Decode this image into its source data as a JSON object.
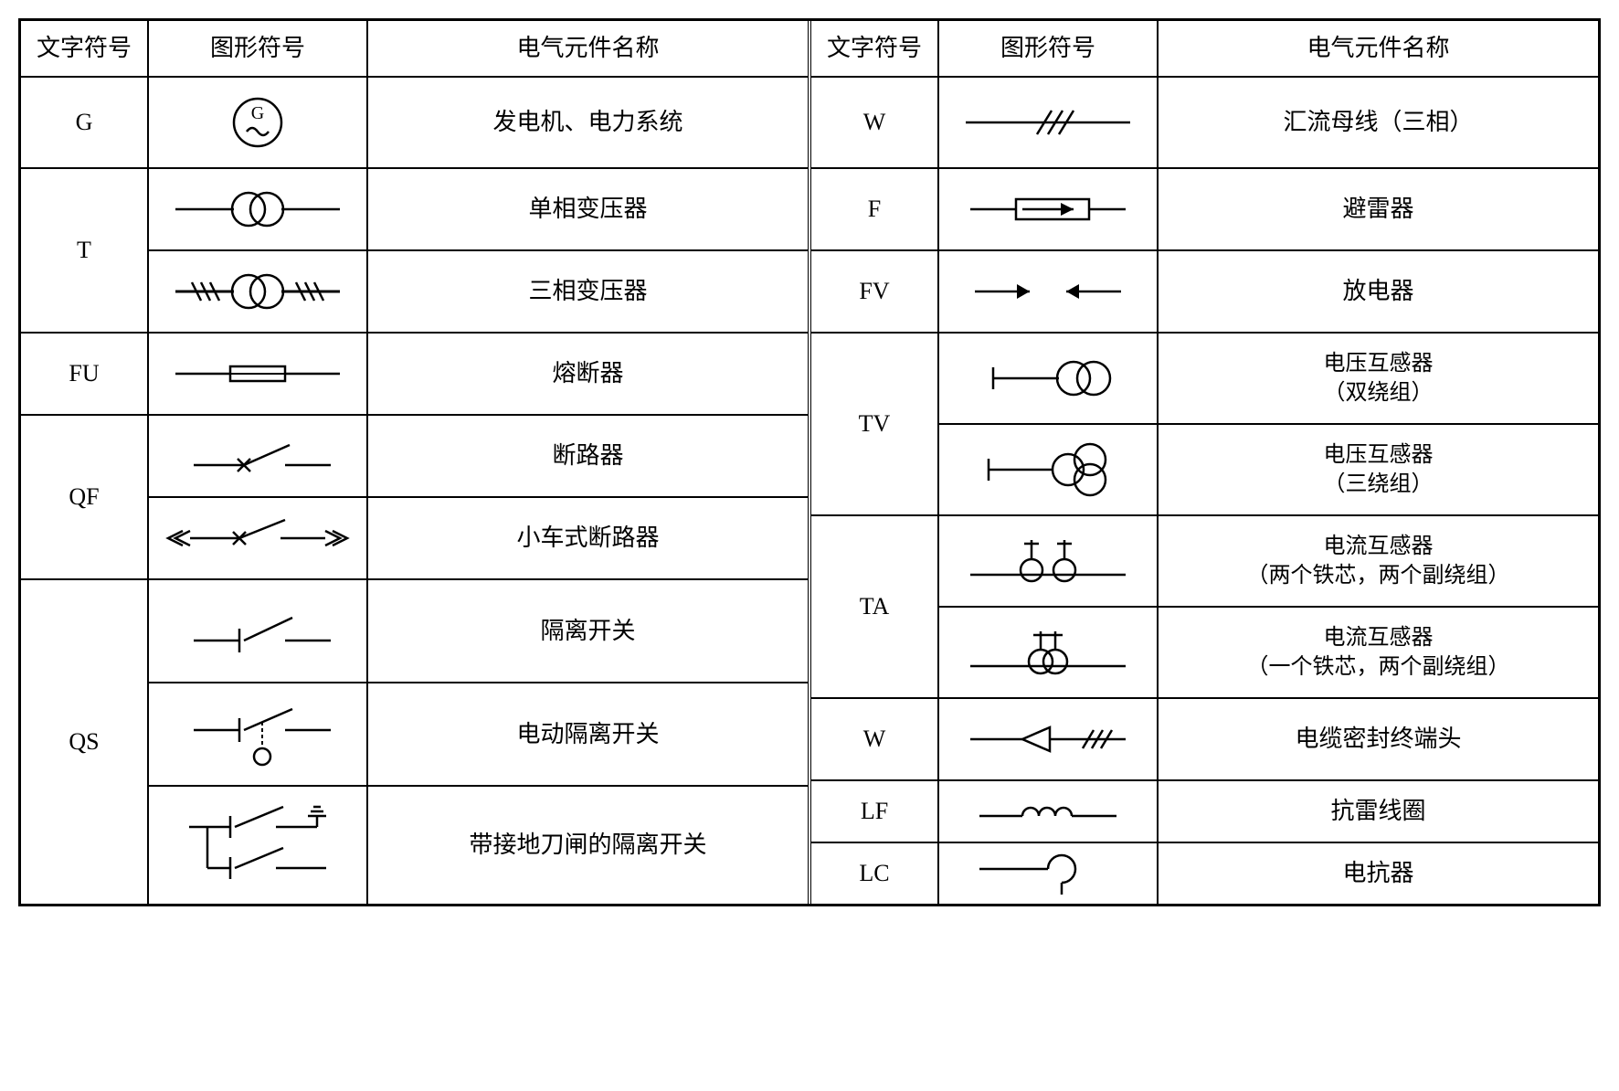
{
  "headers": {
    "code": "文字符号",
    "symbol": "图形符号",
    "name": "电气元件名称"
  },
  "stroke": "#000000",
  "bg": "#ffffff",
  "font_size_pt": 26,
  "left": {
    "G": {
      "name": "发电机、电力系统"
    },
    "T": {
      "sub": [
        "单相变压器",
        "三相变压器"
      ]
    },
    "FU": {
      "name": "熔断器"
    },
    "QF": {
      "sub": [
        "断路器",
        "小车式断路器"
      ]
    },
    "QS": {
      "sub": [
        "隔离开关",
        "电动隔离开关",
        "带接地刀闸的隔离开关"
      ]
    }
  },
  "right": {
    "W": {
      "name": "汇流母线（三相）"
    },
    "F": {
      "name": "避雷器"
    },
    "FV": {
      "name": "放电器"
    },
    "TV": {
      "sub": [
        "电压互感器\n（双绕组）",
        "电压互感器\n（三绕组）"
      ]
    },
    "TA": {
      "sub": [
        "电流互感器\n（两个铁芯，两个副绕组）",
        "电流互感器\n（一个铁芯，两个副绕组）"
      ]
    },
    "W2": {
      "code": "W",
      "name": "电缆密封终端头"
    },
    "LF": {
      "name": "抗雷线圈"
    },
    "LC": {
      "name": "电抗器"
    }
  }
}
